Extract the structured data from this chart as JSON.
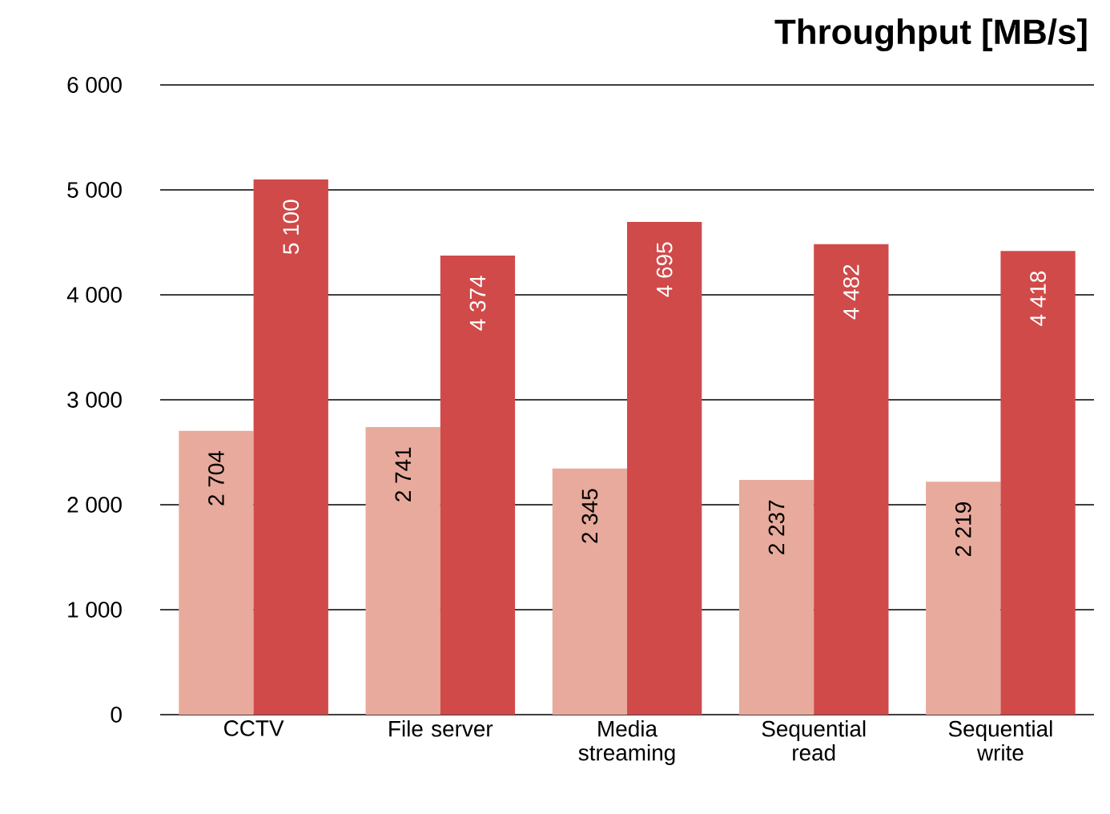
{
  "chart_data": {
    "type": "bar",
    "title": "**Throughput  [MB/s]**",
    "categories": [
      "CCTV",
      "File server",
      "Media streaming",
      "Sequential read",
      "Sequential write"
    ],
    "series": [
      {
        "color": "#e8aa9c",
        "values": [
          2704,
          2741,
          2345,
          2237,
          2219
        ],
        "value_labels": [
          "2 704",
          "2 741",
          "2 345",
          "2 237",
          "2 219"
        ]
      },
      {
        "color": "#d04a4a",
        "values": [
          5100,
          4374,
          4695,
          4482,
          4418
        ],
        "value_labels": [
          "5 100",
          "4 374",
          "4 695",
          "4 482",
          "4 418"
        ]
      }
    ],
    "ylim": [
      0,
      6000
    ],
    "yticks": [
      {
        "value": 0,
        "label": "0"
      },
      {
        "value": 1000,
        "label": "1 000"
      },
      {
        "value": 2000,
        "label": "2 000"
      },
      {
        "value": 3000,
        "label": "3 000"
      },
      {
        "value": 4000,
        "label": "4 000"
      },
      {
        "value": 5000,
        "label": "5 000"
      },
      {
        "value": 6000,
        "label": "6 000"
      }
    ],
    "grid": "y"
  }
}
